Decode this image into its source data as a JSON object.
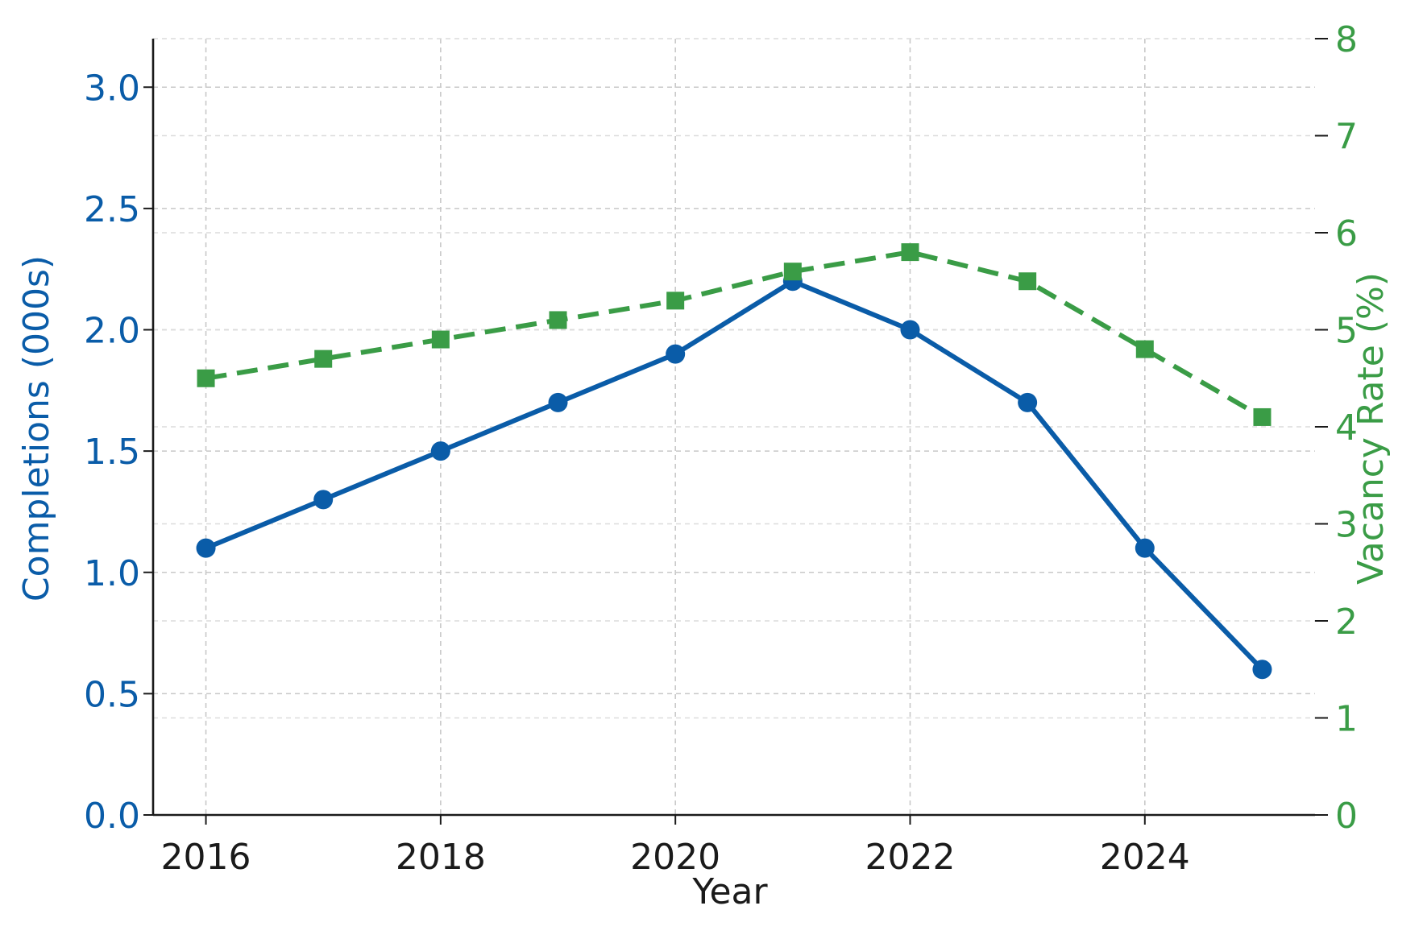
{
  "chart_data": {
    "type": "line",
    "title": "",
    "x": [
      2016,
      2017,
      2018,
      2019,
      2020,
      2021,
      2022,
      2023,
      2024,
      2025
    ],
    "xlabel": "Year",
    "xticks": [
      "2016",
      "2018",
      "2020",
      "2022",
      "2024"
    ],
    "xlim": [
      2015.55,
      2025.45
    ],
    "grid": true,
    "legend": "none",
    "series": [
      {
        "axis": "left",
        "values": [
          1.1,
          1.3,
          1.5,
          1.7,
          1.9,
          2.2,
          2.0,
          1.7,
          1.1,
          0.6
        ],
        "color": "#0a5ca8",
        "line_style": "solid",
        "marker": "circle"
      },
      {
        "axis": "right",
        "values": [
          4.5,
          4.7,
          4.9,
          5.1,
          5.3,
          5.6,
          5.8,
          5.5,
          4.8,
          4.1
        ],
        "color": "#3a9c46",
        "line_style": "dashed",
        "marker": "square"
      }
    ],
    "y_left": {
      "label": "Completions (000s)",
      "ylim": [
        0,
        3.2
      ],
      "ticks": [
        "0.0",
        "0.5",
        "1.0",
        "1.5",
        "2.0",
        "2.5",
        "3.0"
      ],
      "color": "#0a5ca8"
    },
    "y_right": {
      "label": "Vacancy Rate (%)",
      "ylim": [
        0,
        8
      ],
      "ticks": [
        "0",
        "1",
        "2",
        "3",
        "4",
        "5",
        "6",
        "7",
        "8"
      ],
      "color": "#3a9c46"
    }
  }
}
